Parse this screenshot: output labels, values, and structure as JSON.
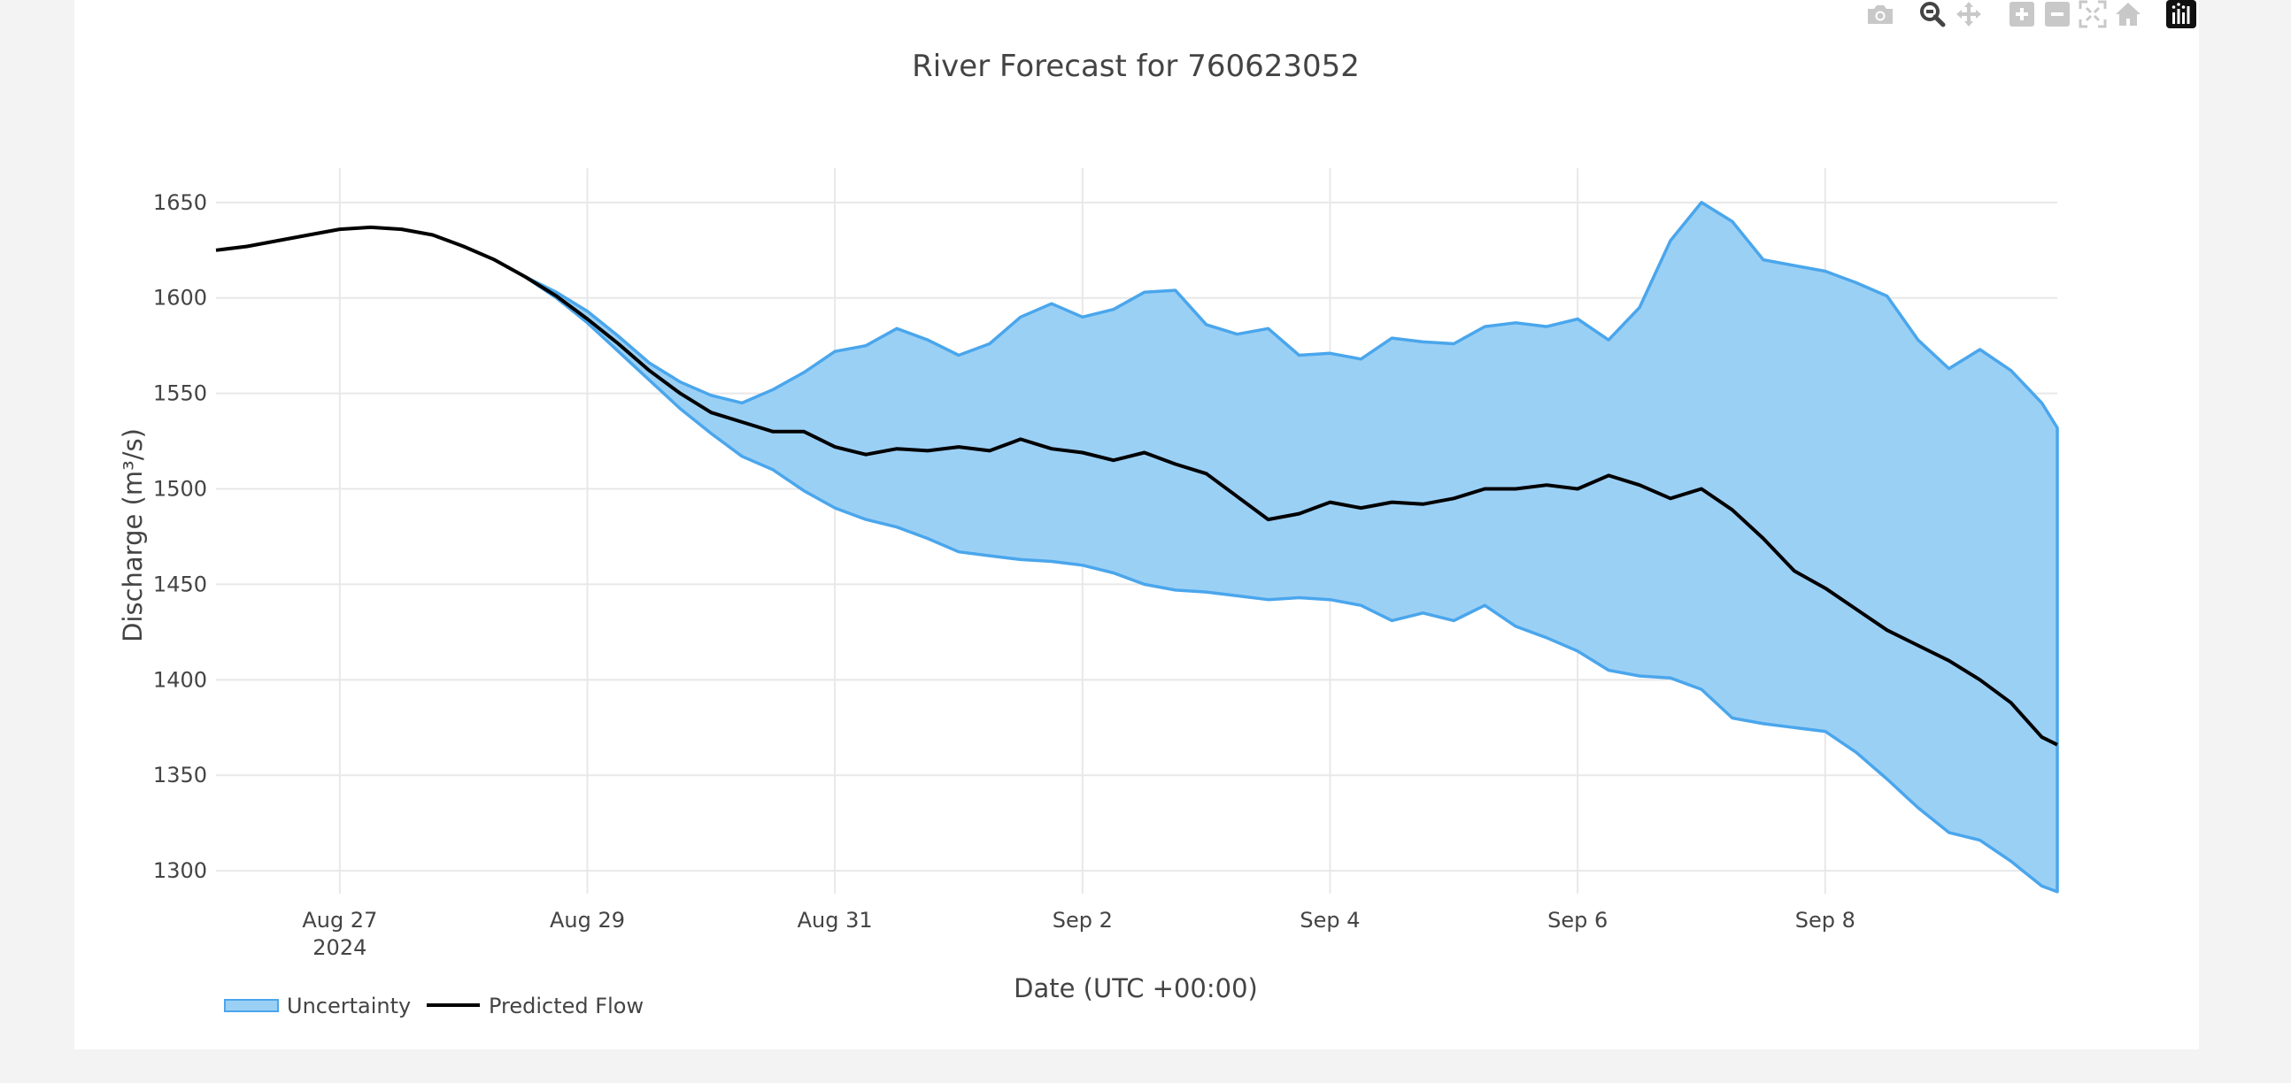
{
  "modebar": {
    "buttons": [
      "camera-icon",
      "zoom-icon",
      "pan-icon",
      "zoom-in-icon",
      "zoom-out-icon",
      "autoscale-icon",
      "home-icon",
      "plotly-logo-icon"
    ]
  },
  "colors": {
    "band_fill": "#9bd0f5",
    "band_line": "#4aa6ec",
    "flow_line": "#000000",
    "grid": "#e8e8e8"
  },
  "chart_data": {
    "type": "line",
    "title": "River Forecast for 760623052",
    "xlabel": "Date (UTC +00:00)",
    "ylabel": "Discharge (m³/s)",
    "ylim": [
      1288,
      1668
    ],
    "xlim": [
      "2024-08-26 00:00",
      "2024-09-09 21:00"
    ],
    "x_ticks": [
      {
        "date": "2024-08-27",
        "label": "Aug 27",
        "sub": "2024"
      },
      {
        "date": "2024-08-29",
        "label": "Aug 29",
        "sub": ""
      },
      {
        "date": "2024-08-31",
        "label": "Aug 31",
        "sub": ""
      },
      {
        "date": "2024-09-02",
        "label": "Sep 2",
        "sub": ""
      },
      {
        "date": "2024-09-04",
        "label": "Sep 4",
        "sub": ""
      },
      {
        "date": "2024-09-06",
        "label": "Sep 6",
        "sub": ""
      },
      {
        "date": "2024-09-08",
        "label": "Sep 8",
        "sub": ""
      }
    ],
    "y_ticks": [
      1300,
      1350,
      1400,
      1450,
      1500,
      1550,
      1600,
      1650
    ],
    "grid": true,
    "legend_position": "bottom-left",
    "series": [
      {
        "name": "Predicted Flow",
        "points": [
          [
            "2024-08-26 00:00",
            1625
          ],
          [
            "2024-08-26 06:00",
            1627
          ],
          [
            "2024-08-26 12:00",
            1630
          ],
          [
            "2024-08-26 18:00",
            1633
          ],
          [
            "2024-08-27 00:00",
            1636
          ],
          [
            "2024-08-27 06:00",
            1637
          ],
          [
            "2024-08-27 12:00",
            1636
          ],
          [
            "2024-08-27 18:00",
            1633
          ],
          [
            "2024-08-28 00:00",
            1627
          ],
          [
            "2024-08-28 06:00",
            1620
          ],
          [
            "2024-08-28 12:00",
            1611
          ],
          [
            "2024-08-28 18:00",
            1601
          ],
          [
            "2024-08-29 00:00",
            1589
          ],
          [
            "2024-08-29 06:00",
            1576
          ],
          [
            "2024-08-29 12:00",
            1562
          ],
          [
            "2024-08-29 18:00",
            1550
          ],
          [
            "2024-08-30 00:00",
            1540
          ],
          [
            "2024-08-30 06:00",
            1535
          ],
          [
            "2024-08-30 12:00",
            1530
          ],
          [
            "2024-08-30 18:00",
            1530
          ],
          [
            "2024-08-31 00:00",
            1522
          ],
          [
            "2024-08-31 06:00",
            1518
          ],
          [
            "2024-08-31 12:00",
            1521
          ],
          [
            "2024-08-31 18:00",
            1520
          ],
          [
            "2024-09-01 00:00",
            1522
          ],
          [
            "2024-09-01 06:00",
            1520
          ],
          [
            "2024-09-01 12:00",
            1526
          ],
          [
            "2024-09-01 18:00",
            1521
          ],
          [
            "2024-09-02 00:00",
            1519
          ],
          [
            "2024-09-02 06:00",
            1515
          ],
          [
            "2024-09-02 12:00",
            1519
          ],
          [
            "2024-09-02 18:00",
            1513
          ],
          [
            "2024-09-03 00:00",
            1508
          ],
          [
            "2024-09-03 06:00",
            1496
          ],
          [
            "2024-09-03 12:00",
            1484
          ],
          [
            "2024-09-03 18:00",
            1487
          ],
          [
            "2024-09-04 00:00",
            1493
          ],
          [
            "2024-09-04 06:00",
            1490
          ],
          [
            "2024-09-04 12:00",
            1493
          ],
          [
            "2024-09-04 18:00",
            1492
          ],
          [
            "2024-09-05 00:00",
            1495
          ],
          [
            "2024-09-05 06:00",
            1500
          ],
          [
            "2024-09-05 12:00",
            1500
          ],
          [
            "2024-09-05 18:00",
            1502
          ],
          [
            "2024-09-06 00:00",
            1500
          ],
          [
            "2024-09-06 06:00",
            1507
          ],
          [
            "2024-09-06 12:00",
            1502
          ],
          [
            "2024-09-06 18:00",
            1495
          ],
          [
            "2024-09-07 00:00",
            1500
          ],
          [
            "2024-09-07 06:00",
            1489
          ],
          [
            "2024-09-07 12:00",
            1474
          ],
          [
            "2024-09-07 18:00",
            1457
          ],
          [
            "2024-09-08 00:00",
            1448
          ],
          [
            "2024-09-08 06:00",
            1437
          ],
          [
            "2024-09-08 12:00",
            1426
          ],
          [
            "2024-09-08 18:00",
            1418
          ],
          [
            "2024-09-09 00:00",
            1410
          ],
          [
            "2024-09-09 06:00",
            1400
          ],
          [
            "2024-09-09 12:00",
            1388
          ],
          [
            "2024-09-09 18:00",
            1370
          ],
          [
            "2024-09-09 21:00",
            1366
          ]
        ]
      },
      {
        "name": "Uncertainty",
        "upper": [
          [
            "2024-08-28 12:00",
            1611
          ],
          [
            "2024-08-28 18:00",
            1603
          ],
          [
            "2024-08-29 00:00",
            1593
          ],
          [
            "2024-08-29 06:00",
            1580
          ],
          [
            "2024-08-29 12:00",
            1566
          ],
          [
            "2024-08-29 18:00",
            1556
          ],
          [
            "2024-08-30 00:00",
            1549
          ],
          [
            "2024-08-30 06:00",
            1545
          ],
          [
            "2024-08-30 12:00",
            1552
          ],
          [
            "2024-08-30 18:00",
            1561
          ],
          [
            "2024-08-31 00:00",
            1572
          ],
          [
            "2024-08-31 06:00",
            1575
          ],
          [
            "2024-08-31 12:00",
            1584
          ],
          [
            "2024-08-31 18:00",
            1578
          ],
          [
            "2024-09-01 00:00",
            1570
          ],
          [
            "2024-09-01 06:00",
            1576
          ],
          [
            "2024-09-01 12:00",
            1590
          ],
          [
            "2024-09-01 18:00",
            1597
          ],
          [
            "2024-09-02 00:00",
            1590
          ],
          [
            "2024-09-02 06:00",
            1594
          ],
          [
            "2024-09-02 12:00",
            1603
          ],
          [
            "2024-09-02 18:00",
            1604
          ],
          [
            "2024-09-03 00:00",
            1586
          ],
          [
            "2024-09-03 06:00",
            1581
          ],
          [
            "2024-09-03 12:00",
            1584
          ],
          [
            "2024-09-03 18:00",
            1570
          ],
          [
            "2024-09-04 00:00",
            1571
          ],
          [
            "2024-09-04 06:00",
            1568
          ],
          [
            "2024-09-04 12:00",
            1579
          ],
          [
            "2024-09-04 18:00",
            1577
          ],
          [
            "2024-09-05 00:00",
            1576
          ],
          [
            "2024-09-05 06:00",
            1585
          ],
          [
            "2024-09-05 12:00",
            1587
          ],
          [
            "2024-09-05 18:00",
            1585
          ],
          [
            "2024-09-06 00:00",
            1589
          ],
          [
            "2024-09-06 06:00",
            1578
          ],
          [
            "2024-09-06 12:00",
            1595
          ],
          [
            "2024-09-06 18:00",
            1630
          ],
          [
            "2024-09-07 00:00",
            1650
          ],
          [
            "2024-09-07 06:00",
            1640
          ],
          [
            "2024-09-07 12:00",
            1620
          ],
          [
            "2024-09-07 18:00",
            1617
          ],
          [
            "2024-09-08 00:00",
            1614
          ],
          [
            "2024-09-08 06:00",
            1608
          ],
          [
            "2024-09-08 12:00",
            1601
          ],
          [
            "2024-09-08 18:00",
            1578
          ],
          [
            "2024-09-09 00:00",
            1563
          ],
          [
            "2024-09-09 06:00",
            1573
          ],
          [
            "2024-09-09 12:00",
            1562
          ],
          [
            "2024-09-09 18:00",
            1545
          ],
          [
            "2024-09-09 21:00",
            1532
          ]
        ],
        "lower": [
          [
            "2024-08-28 12:00",
            1611
          ],
          [
            "2024-08-28 18:00",
            1600
          ],
          [
            "2024-08-29 00:00",
            1587
          ],
          [
            "2024-08-29 06:00",
            1572
          ],
          [
            "2024-08-29 12:00",
            1557
          ],
          [
            "2024-08-29 18:00",
            1542
          ],
          [
            "2024-08-30 00:00",
            1529
          ],
          [
            "2024-08-30 06:00",
            1517
          ],
          [
            "2024-08-30 12:00",
            1510
          ],
          [
            "2024-08-30 18:00",
            1499
          ],
          [
            "2024-08-31 00:00",
            1490
          ],
          [
            "2024-08-31 06:00",
            1484
          ],
          [
            "2024-08-31 12:00",
            1480
          ],
          [
            "2024-08-31 18:00",
            1474
          ],
          [
            "2024-09-01 00:00",
            1467
          ],
          [
            "2024-09-01 06:00",
            1465
          ],
          [
            "2024-09-01 12:00",
            1463
          ],
          [
            "2024-09-01 18:00",
            1462
          ],
          [
            "2024-09-02 00:00",
            1460
          ],
          [
            "2024-09-02 06:00",
            1456
          ],
          [
            "2024-09-02 12:00",
            1450
          ],
          [
            "2024-09-02 18:00",
            1447
          ],
          [
            "2024-09-03 00:00",
            1446
          ],
          [
            "2024-09-03 06:00",
            1444
          ],
          [
            "2024-09-03 12:00",
            1442
          ],
          [
            "2024-09-03 18:00",
            1443
          ],
          [
            "2024-09-04 00:00",
            1442
          ],
          [
            "2024-09-04 06:00",
            1439
          ],
          [
            "2024-09-04 12:00",
            1431
          ],
          [
            "2024-09-04 18:00",
            1435
          ],
          [
            "2024-09-05 00:00",
            1431
          ],
          [
            "2024-09-05 06:00",
            1439
          ],
          [
            "2024-09-05 12:00",
            1428
          ],
          [
            "2024-09-05 18:00",
            1422
          ],
          [
            "2024-09-06 00:00",
            1415
          ],
          [
            "2024-09-06 06:00",
            1405
          ],
          [
            "2024-09-06 12:00",
            1402
          ],
          [
            "2024-09-06 18:00",
            1401
          ],
          [
            "2024-09-07 00:00",
            1395
          ],
          [
            "2024-09-07 06:00",
            1380
          ],
          [
            "2024-09-07 12:00",
            1377
          ],
          [
            "2024-09-07 18:00",
            1375
          ],
          [
            "2024-09-08 00:00",
            1373
          ],
          [
            "2024-09-08 06:00",
            1362
          ],
          [
            "2024-09-08 12:00",
            1348
          ],
          [
            "2024-09-08 18:00",
            1333
          ],
          [
            "2024-09-09 00:00",
            1320
          ],
          [
            "2024-09-09 06:00",
            1316
          ],
          [
            "2024-09-09 12:00",
            1305
          ],
          [
            "2024-09-09 18:00",
            1292
          ],
          [
            "2024-09-09 21:00",
            1289
          ]
        ]
      }
    ]
  }
}
